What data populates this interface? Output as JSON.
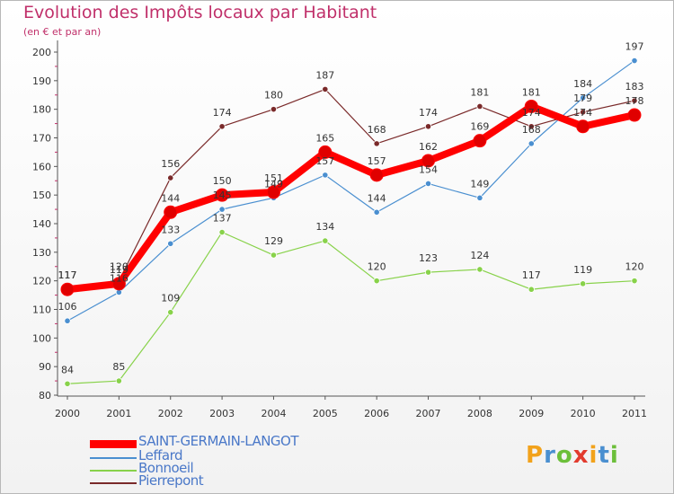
{
  "title": "Evolution des Impôts locaux par Habitant",
  "subtitle": "(en € et par an)",
  "logo": "Proxiti",
  "chart_data": {
    "type": "line",
    "title": "Evolution des Impôts locaux par Habitant",
    "subtitle": "(en € et par an)",
    "x": [
      "2000",
      "2001",
      "2002",
      "2003",
      "2004",
      "2005",
      "2006",
      "2007",
      "2008",
      "2009",
      "2010",
      "2011"
    ],
    "ylim": [
      80,
      200
    ],
    "yticks": [
      80,
      90,
      100,
      110,
      120,
      130,
      140,
      150,
      160,
      170,
      180,
      190,
      200
    ],
    "grid": false,
    "legend_position": "bottom-left",
    "series": [
      {
        "name": "SAINT-GERMAIN-LANGOT",
        "color": "#ff0000",
        "values": [
          117,
          119,
          144,
          150,
          151,
          165,
          157,
          162,
          169,
          181,
          174,
          178
        ],
        "labels": [
          "117",
          "119",
          "144",
          "150",
          "151",
          "165",
          "157",
          "162",
          "169",
          "181",
          "174",
          "178"
        ]
      },
      {
        "name": "Leffard",
        "color": "#4a8fd0",
        "values": [
          106,
          116,
          133,
          145,
          149,
          157,
          144,
          154,
          149,
          168,
          184,
          197
        ],
        "labels": [
          "106",
          "116",
          "133",
          "145",
          "149",
          "157",
          "144",
          "154",
          "149",
          "168",
          "184",
          "197"
        ]
      },
      {
        "name": "Bonnoeil",
        "color": "#88d24a",
        "values": [
          84,
          85,
          109,
          137,
          129,
          134,
          120,
          123,
          124,
          117,
          119,
          120
        ],
        "labels": [
          "84",
          "85",
          "109",
          "137",
          "129",
          "134",
          "120",
          "123",
          "124",
          "117",
          "119",
          "120"
        ]
      },
      {
        "name": "Pierrepont",
        "color": "#7a2a2a",
        "values": [
          117,
          120,
          156,
          174,
          180,
          187,
          168,
          174,
          181,
          174,
          179,
          183
        ],
        "labels": [
          "117",
          "120",
          "156",
          "174",
          "180",
          "187",
          "168",
          "174",
          "181",
          "174",
          "179",
          "183"
        ]
      }
    ]
  }
}
